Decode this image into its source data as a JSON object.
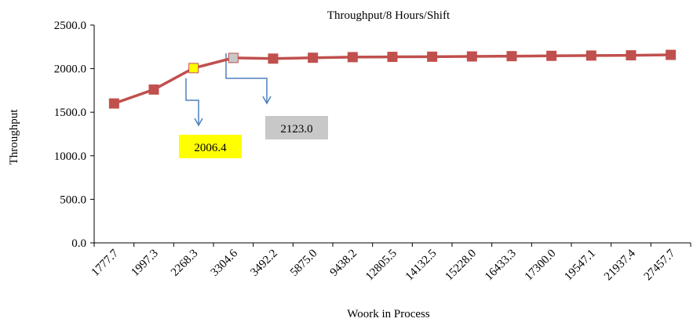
{
  "chart_data": {
    "type": "line",
    "title": "Throughput/8 Hours/Shift",
    "y_label": "Throughput",
    "x_label": "Woork in Process",
    "categories": [
      "1777.7",
      "1997.3",
      "2268.3",
      "3304.6",
      "3492.2",
      "5875.0",
      "9438.2",
      "12805.5",
      "14132.5",
      "15228.0",
      "16433.3",
      "17300.0",
      "19547.1",
      "21937.4",
      "27457.7"
    ],
    "values": [
      1600,
      1760,
      2006.4,
      2123.0,
      2115,
      2125,
      2132,
      2135,
      2137,
      2140,
      2143,
      2147,
      2150,
      2153,
      2158
    ],
    "value_labels": [
      null,
      null,
      "2006.4",
      "2123.0",
      null,
      null,
      null,
      null,
      null,
      null,
      null,
      null,
      null,
      null,
      null
    ],
    "label_colors": [
      null,
      null,
      "#ffff00",
      "#c8c8c8",
      null,
      null,
      null,
      null,
      null,
      null,
      null,
      null,
      null,
      null,
      null
    ],
    "color": "#c0504d",
    "ylim": [
      0,
      2500
    ],
    "yticks": [
      {
        "value": 0,
        "label": "0.0"
      },
      {
        "value": 500,
        "label": "500.0"
      },
      {
        "value": 1000,
        "label": "1000.0"
      },
      {
        "value": 1500,
        "label": "1500.0"
      },
      {
        "value": 2000,
        "label": "2000.0"
      },
      {
        "value": 2500,
        "label": "2500.0"
      }
    ],
    "grid": false
  }
}
